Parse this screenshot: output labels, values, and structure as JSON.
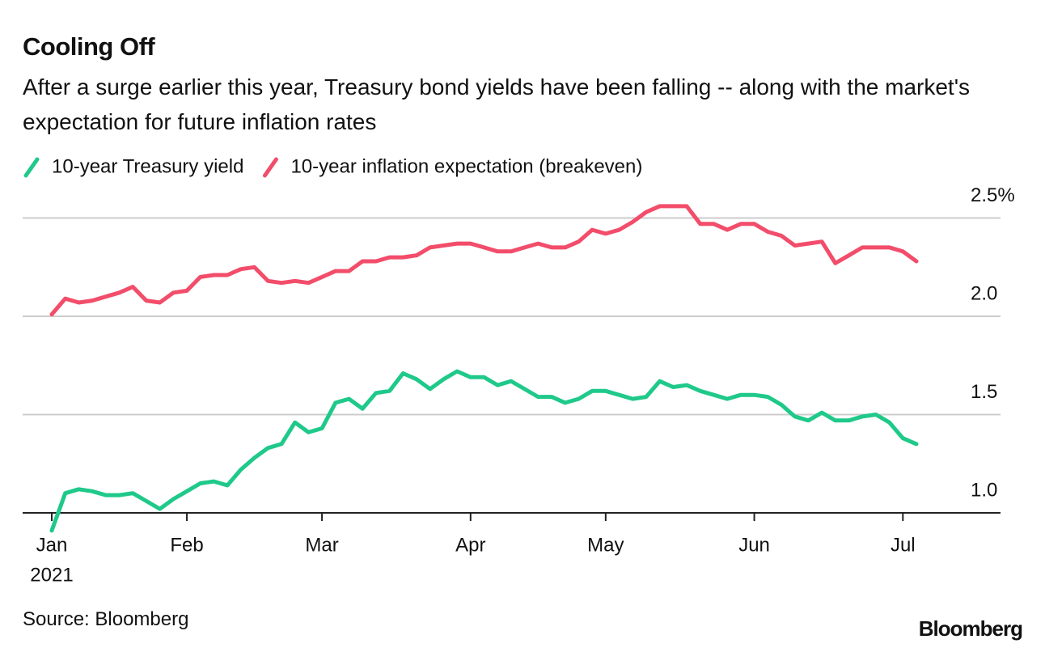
{
  "title": "Cooling Off",
  "subtitle": "After a surge earlier this year, Treasury bond yields have been falling -- along with the market's expectation for future inflation rates",
  "source": "Source: Bloomberg",
  "brand": "Bloomberg",
  "chart_data": {
    "type": "line",
    "categories": [
      "Jan",
      null,
      null,
      null,
      null,
      null,
      null,
      null,
      null,
      null,
      "Feb",
      null,
      null,
      null,
      null,
      null,
      null,
      null,
      null,
      null,
      "Mar",
      null,
      null,
      null,
      null,
      null,
      null,
      null,
      null,
      null,
      null,
      "Apr",
      null,
      null,
      null,
      null,
      null,
      null,
      null,
      null,
      null,
      "May",
      null,
      null,
      null,
      null,
      null,
      null,
      null,
      null,
      null,
      null,
      "Jun",
      null,
      null,
      null,
      null,
      null,
      null,
      null,
      null,
      null,
      null,
      "Jul",
      null
    ],
    "year": "2021",
    "series": [
      {
        "name": "10-year Treasury yield",
        "color": "#1fc98a",
        "values": [
          0.91,
          1.1,
          1.12,
          1.11,
          1.09,
          1.09,
          1.1,
          1.06,
          1.02,
          1.07,
          1.11,
          1.15,
          1.16,
          1.14,
          1.22,
          1.28,
          1.33,
          1.35,
          1.46,
          1.41,
          1.43,
          1.56,
          1.58,
          1.53,
          1.61,
          1.62,
          1.71,
          1.68,
          1.63,
          1.68,
          1.72,
          1.69,
          1.69,
          1.65,
          1.67,
          1.63,
          1.59,
          1.59,
          1.56,
          1.58,
          1.62,
          1.62,
          1.6,
          1.58,
          1.59,
          1.67,
          1.64,
          1.65,
          1.62,
          1.6,
          1.58,
          1.6,
          1.6,
          1.59,
          1.55,
          1.49,
          1.47,
          1.51,
          1.47,
          1.47,
          1.49,
          1.5,
          1.46,
          1.38,
          1.35
        ]
      },
      {
        "name": "10-year inflation expectation (breakeven)",
        "color": "#f24d6a",
        "values": [
          2.01,
          2.09,
          2.07,
          2.08,
          2.1,
          2.12,
          2.15,
          2.08,
          2.07,
          2.12,
          2.13,
          2.2,
          2.21,
          2.21,
          2.24,
          2.25,
          2.18,
          2.17,
          2.18,
          2.17,
          2.2,
          2.23,
          2.23,
          2.28,
          2.28,
          2.3,
          2.3,
          2.31,
          2.35,
          2.36,
          2.37,
          2.37,
          2.35,
          2.33,
          2.33,
          2.35,
          2.37,
          2.35,
          2.35,
          2.38,
          2.44,
          2.42,
          2.44,
          2.48,
          2.53,
          2.56,
          2.56,
          2.56,
          2.47,
          2.47,
          2.44,
          2.47,
          2.47,
          2.43,
          2.41,
          2.36,
          2.37,
          2.38,
          2.27,
          2.31,
          2.35,
          2.35,
          2.35,
          2.33,
          2.28
        ]
      }
    ],
    "ylim": [
      0.9,
      2.6
    ],
    "yticks": [
      {
        "value": 1,
        "label": "1.0"
      },
      1.5,
      {
        "value": 2,
        "label": "2.0"
      },
      {
        "value": 2.5,
        "label": "2.5%"
      }
    ],
    "grid": true
  }
}
